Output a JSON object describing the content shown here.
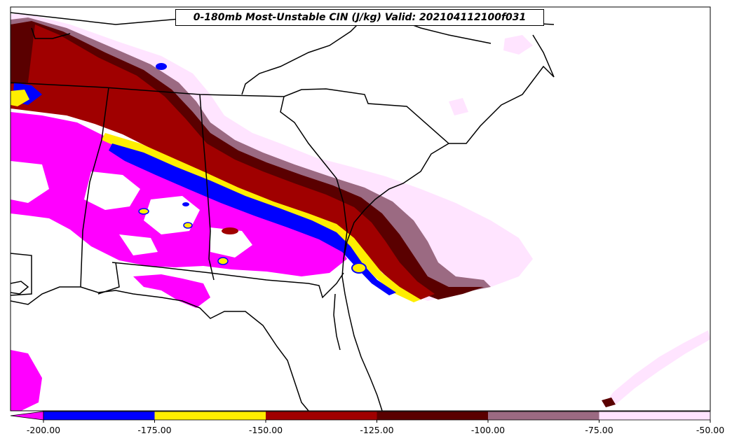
{
  "title": "0-180mb Most-Unstable CIN (J/kg) Valid: 202104112100f031",
  "colorbar": {
    "ticks": [
      "-200.00",
      "-175.00",
      "-150.00",
      "-125.00",
      "-100.00",
      "-75.00",
      "-50.00"
    ],
    "bins": [
      {
        "from": -200,
        "to": -175,
        "color": "#0000ff"
      },
      {
        "from": -175,
        "to": -150,
        "color": "#ffee00"
      },
      {
        "from": -150,
        "to": -125,
        "color": "#a00000"
      },
      {
        "from": -125,
        "to": -100,
        "color": "#5a0000"
      },
      {
        "from": -100,
        "to": -75,
        "color": "#9b6a82"
      },
      {
        "from": -75,
        "to": -50,
        "color": "#ffe4ff"
      }
    ],
    "under_color": "#ff00ff"
  },
  "colors": {
    "magenta": "#ff00ff",
    "blue": "#0000ff",
    "yellow": "#ffee00",
    "red": "#a00000",
    "darkred": "#5a0000",
    "mauve": "#9b6a82",
    "pink": "#ffe4ff"
  }
}
